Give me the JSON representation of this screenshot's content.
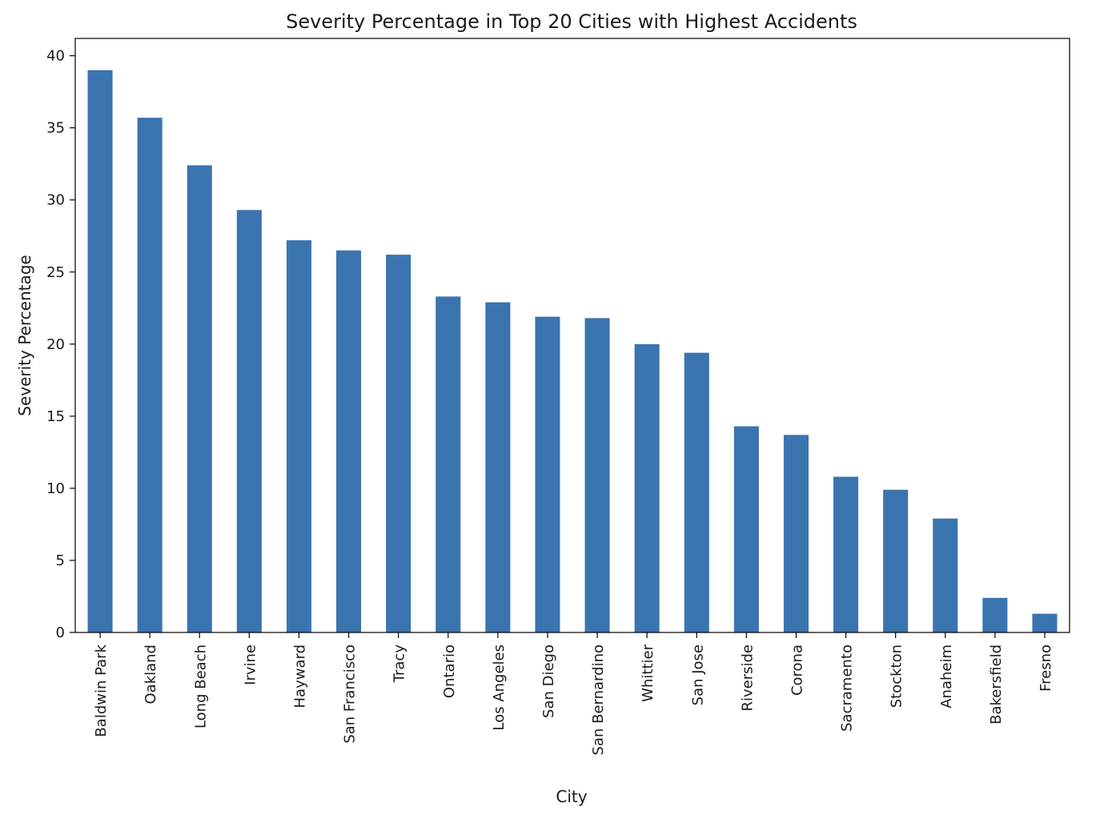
{
  "chart_data": {
    "type": "bar",
    "title": "Severity Percentage in Top 20 Cities with Highest Accidents",
    "xlabel": "City",
    "ylabel": "Severity Percentage",
    "ylim": [
      0,
      41.2
    ],
    "yticks": [
      0,
      5,
      10,
      15,
      20,
      25,
      30,
      35,
      40
    ],
    "grid": false,
    "legend": "none",
    "bar_color": "#3a74af",
    "categories": [
      "Baldwin Park",
      "Oakland",
      "Long Beach",
      "Irvine",
      "Hayward",
      "San Francisco",
      "Tracy",
      "Ontario",
      "Los Angeles",
      "San Diego",
      "San Bernardino",
      "Whittier",
      "San Jose",
      "Riverside",
      "Corona",
      "Sacramento",
      "Stockton",
      "Anaheim",
      "Bakersfield",
      "Fresno"
    ],
    "values": [
      39.0,
      35.7,
      32.4,
      29.3,
      27.2,
      26.5,
      26.2,
      23.3,
      22.9,
      21.9,
      21.8,
      20.0,
      19.4,
      14.3,
      13.7,
      10.8,
      9.9,
      7.9,
      2.4,
      1.3
    ]
  }
}
